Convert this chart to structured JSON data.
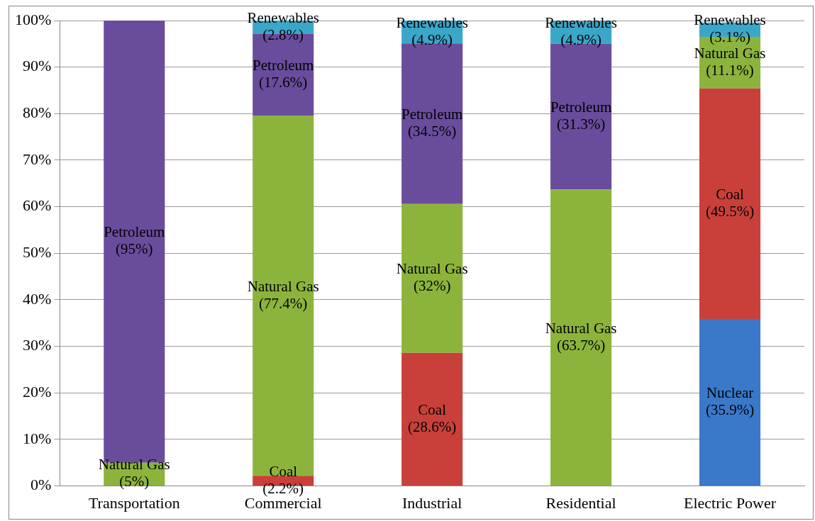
{
  "chart_data": {
    "type": "bar",
    "stacked": true,
    "categories": [
      "Transportation",
      "Commercial",
      "Industrial",
      "Residential",
      "Electric Power"
    ],
    "series": [
      {
        "name": "Nuclear",
        "color": "#3a78c9",
        "values": [
          null,
          null,
          null,
          null,
          35.9
        ],
        "value_labels": [
          null,
          null,
          null,
          null,
          "(35.9%)"
        ]
      },
      {
        "name": "Coal",
        "color": "#c9403a",
        "values": [
          null,
          2.2,
          28.6,
          null,
          49.5
        ],
        "value_labels": [
          null,
          "(2.2%)",
          "(28.6%)",
          null,
          "(49.5%)"
        ]
      },
      {
        "name": "Natural Gas",
        "color": "#8cb43c",
        "values": [
          5,
          77.4,
          32,
          63.7,
          11.1
        ],
        "value_labels": [
          "(5%)",
          "(77.4%)",
          "(32%)",
          "(63.7%)",
          "(11.1%)"
        ]
      },
      {
        "name": "Petroleum",
        "color": "#6a4c9c",
        "values": [
          95,
          17.6,
          34.5,
          31.3,
          null
        ],
        "value_labels": [
          "(95%)",
          "(17.6%)",
          "(34.5%)",
          "(31.3%)",
          null
        ]
      },
      {
        "name": "Renewables",
        "color": "#3ba7c8",
        "values": [
          null,
          2.8,
          4.9,
          4.9,
          3.1
        ],
        "value_labels": [
          null,
          "(2.8%)",
          "(4.9%)",
          "(4.9%)",
          "(3.1%)"
        ]
      }
    ],
    "ylim": [
      0,
      100
    ],
    "yticks": [
      {
        "value": 0,
        "label": "0%"
      },
      {
        "value": 10,
        "label": "10%"
      },
      {
        "value": 20,
        "label": "20%"
      },
      {
        "value": 30,
        "label": "30%"
      },
      {
        "value": 40,
        "label": "40%"
      },
      {
        "value": 50,
        "label": "50%"
      },
      {
        "value": 60,
        "label": "60%"
      },
      {
        "value": 70,
        "label": "70%"
      },
      {
        "value": 80,
        "label": "80%"
      },
      {
        "value": 90,
        "label": "90%"
      },
      {
        "value": 100,
        "label": "100%"
      }
    ],
    "grid": "y",
    "legend": false
  }
}
